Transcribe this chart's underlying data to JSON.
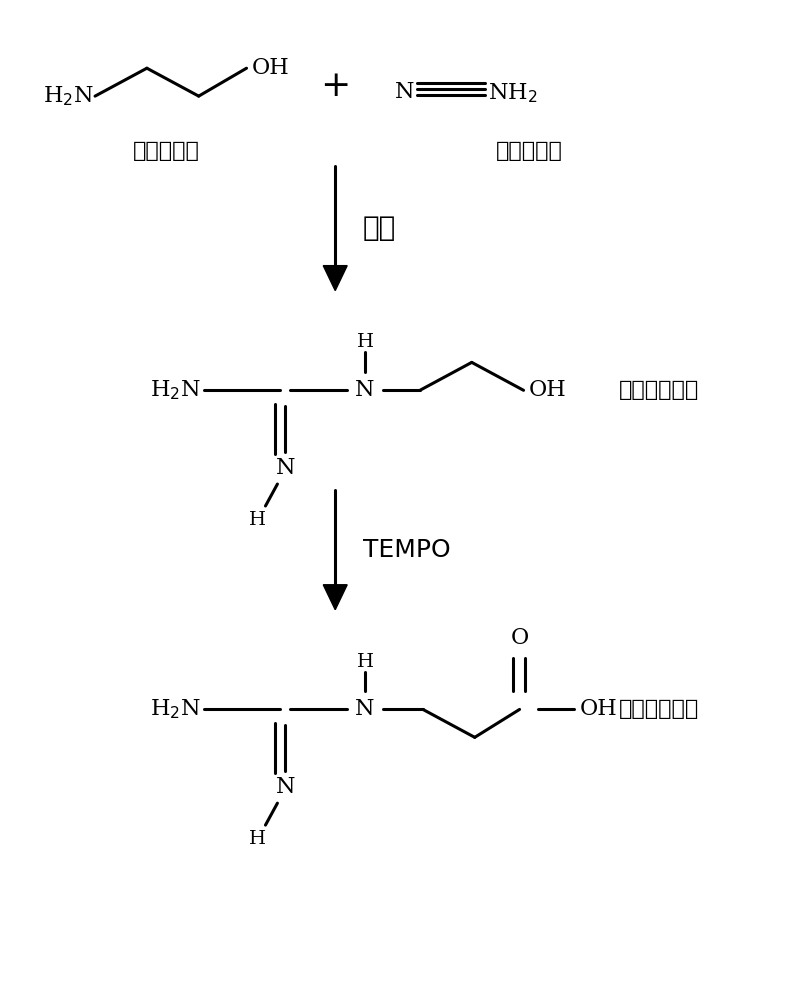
{
  "background_color": "#ffffff",
  "figsize": [
    7.97,
    10.0
  ],
  "dpi": 100,
  "ethanolamine_label": "（乙醇胺）",
  "cyanamide_label": "（单氰胺）",
  "step1_label": "加热",
  "intermediate_label": "（胍基乙醇）",
  "step2_label": "TEMPO",
  "product_label": "（胍基乙酸）",
  "plus_sign": "+"
}
